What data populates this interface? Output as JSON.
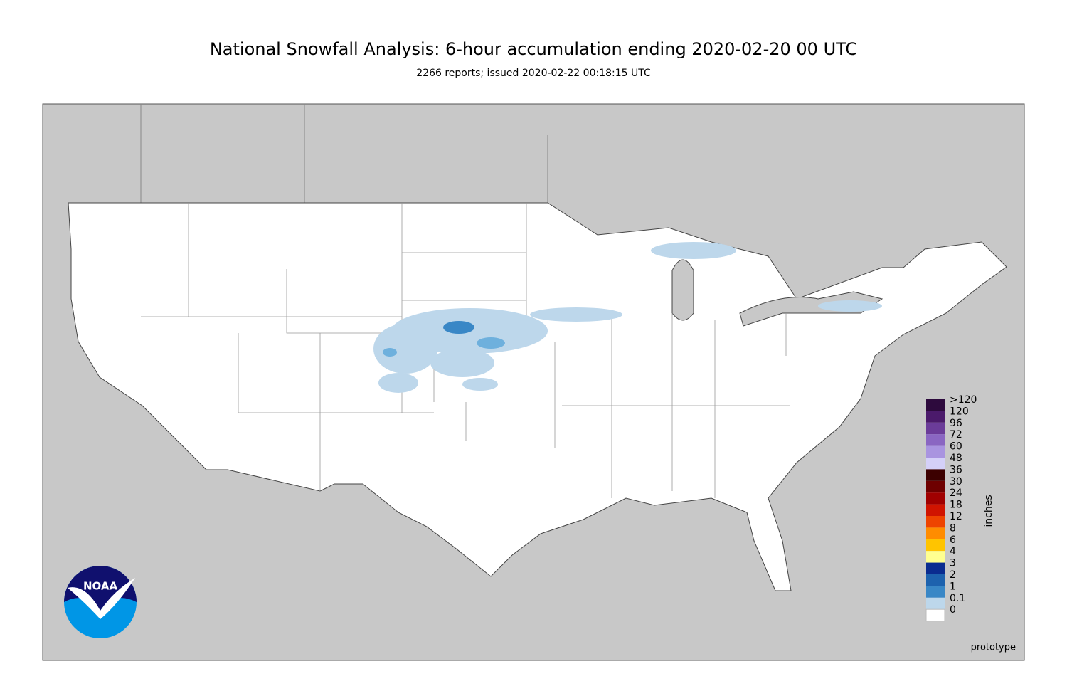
{
  "header": {
    "title": "National Snowfall Analysis: 6-hour accumulation ending 2020-02-20 00 UTC",
    "subtitle": "2266 reports; issued 2020-02-22 00:18:15 UTC"
  },
  "legend": {
    "unit": "inches",
    "items": [
      {
        "label": ">120",
        "color": "#2d0a3d"
      },
      {
        "label": "120",
        "color": "#4b1a6b"
      },
      {
        "label": "96",
        "color": "#6b3c99"
      },
      {
        "label": "72",
        "color": "#8a66c2"
      },
      {
        "label": "60",
        "color": "#a994e0"
      },
      {
        "label": "48",
        "color": "#d4d0f8"
      },
      {
        "label": "36",
        "color": "#3c0000"
      },
      {
        "label": "30",
        "color": "#6e0000"
      },
      {
        "label": "24",
        "color": "#a00000"
      },
      {
        "label": "18",
        "color": "#d01400"
      },
      {
        "label": "12",
        "color": "#ee4400"
      },
      {
        "label": "8",
        "color": "#ff8c00"
      },
      {
        "label": "6",
        "color": "#ffc400"
      },
      {
        "label": "4",
        "color": "#ffff90"
      },
      {
        "label": "3",
        "color": "#0a2c90"
      },
      {
        "label": "2",
        "color": "#1d62ae"
      },
      {
        "label": "1",
        "color": "#3987c6"
      },
      {
        "label": "0.1",
        "color": "#bdd7eb"
      },
      {
        "label": "0",
        "color": "#ffffff"
      }
    ]
  },
  "logo": {
    "text": "NOAA"
  },
  "footer": {
    "note": "prototype"
  }
}
